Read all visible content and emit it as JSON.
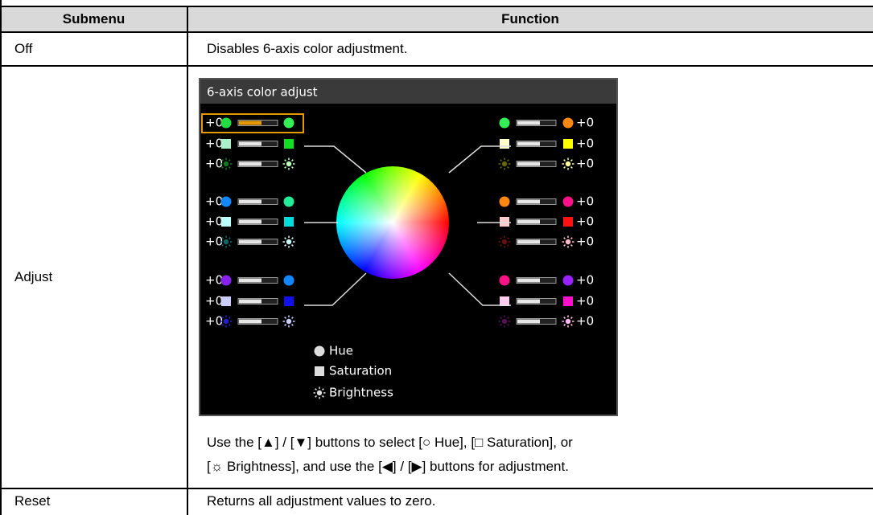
{
  "table": {
    "headers": [
      "Submenu",
      "Function"
    ],
    "rows": [
      {
        "submenu": "Off",
        "function": "Disables 6-axis color adjustment."
      },
      {
        "submenu": "Adjust",
        "screen": {
          "title": "6-axis color adjust",
          "left": [
            [
              "+0",
              "+0",
              "+0"
            ],
            [
              "+0",
              "+0",
              "+0"
            ],
            [
              "+0",
              "+0",
              "+0"
            ]
          ],
          "right": [
            [
              "+0",
              "+0",
              "+0"
            ],
            [
              "+0",
              "+0",
              "+0"
            ],
            [
              "+0",
              "+0",
              "+0"
            ]
          ],
          "legend": [
            "Hue",
            "Saturation",
            "Brightness"
          ]
        },
        "instructions": [
          "Use the [▲] / [▼] buttons to select [○ Hue], [□ Saturation], or",
          "[☼ Brightness], and use the [◀] / [▶] buttons for adjustment."
        ]
      },
      {
        "submenu": "Reset",
        "function": "Returns all adjustment values to zero."
      }
    ]
  }
}
